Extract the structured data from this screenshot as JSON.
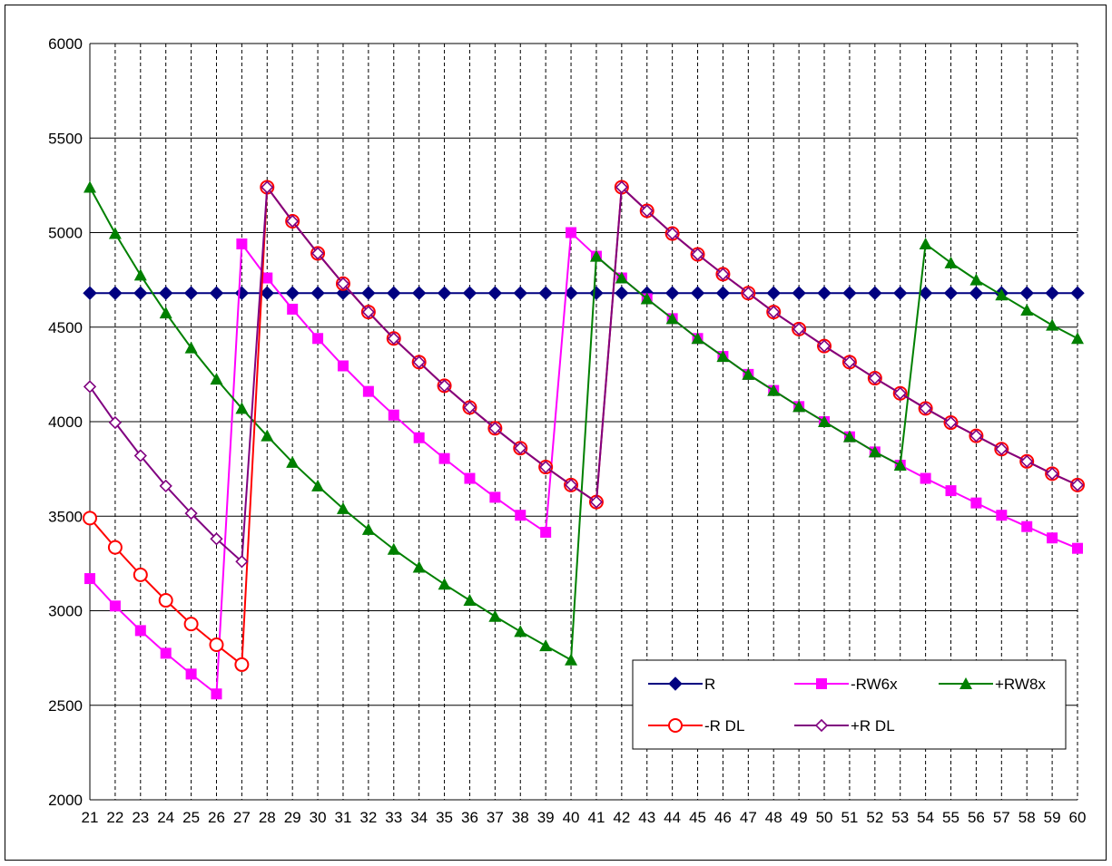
{
  "chart_data": {
    "type": "line",
    "title": "",
    "xlabel": "",
    "ylabel": "",
    "x": [
      21,
      22,
      23,
      24,
      25,
      26,
      27,
      28,
      29,
      30,
      31,
      32,
      33,
      34,
      35,
      36,
      37,
      38,
      39,
      40,
      41,
      42,
      43,
      44,
      45,
      46,
      47,
      48,
      49,
      50,
      51,
      52,
      53,
      54,
      55,
      56,
      57,
      58,
      59,
      60
    ],
    "ylim": [
      2000,
      6000
    ],
    "yticks": [
      2000,
      2500,
      3000,
      3500,
      4000,
      4500,
      5000,
      5500,
      6000
    ],
    "grid": "horizontal solid, vertical dashed",
    "legend_position": "lower-right inside plot",
    "series": [
      {
        "name": "R",
        "color": "#000080",
        "marker": "diamond-filled",
        "values": [
          4680,
          4680,
          4680,
          4680,
          4680,
          4680,
          4680,
          4680,
          4680,
          4680,
          4680,
          4680,
          4680,
          4680,
          4680,
          4680,
          4680,
          4680,
          4680,
          4680,
          4680,
          4680,
          4680,
          4680,
          4680,
          4680,
          4680,
          4680,
          4680,
          4680,
          4680,
          4680,
          4680,
          4680,
          4680,
          4680,
          4680,
          4680,
          4680,
          4680
        ]
      },
      {
        "name": "-RW6x",
        "color": "#FF00FF",
        "marker": "square-filled",
        "values": [
          3170,
          3025,
          2895,
          2775,
          2665,
          2560,
          4940,
          4760,
          4595,
          4440,
          4295,
          4160,
          4035,
          3915,
          3805,
          3700,
          3600,
          3505,
          3415,
          5000,
          4875,
          4760,
          4650,
          4545,
          4440,
          4345,
          4250,
          4165,
          4080,
          4000,
          3920,
          3840,
          3770,
          3700,
          3635,
          3570,
          3505,
          3445,
          3385,
          3330
        ]
      },
      {
        "name": "+RW8x",
        "color": "#008000",
        "marker": "triangle-filled",
        "values": [
          5240,
          4995,
          4775,
          4575,
          4390,
          4225,
          4070,
          3925,
          3785,
          3660,
          3540,
          3430,
          3325,
          3230,
          3140,
          3055,
          2970,
          2890,
          2815,
          2740,
          4875,
          4760,
          4650,
          4545,
          4440,
          4345,
          4250,
          4165,
          4080,
          4000,
          3920,
          3840,
          3770,
          4940,
          4840,
          4750,
          4670,
          4590,
          4510,
          4440
        ]
      },
      {
        "name": "-R DL",
        "color": "#FF0000",
        "marker": "circle-open",
        "values": [
          3490,
          3335,
          3190,
          3055,
          2930,
          2820,
          2715,
          5240,
          5060,
          4890,
          4730,
          4580,
          4440,
          4315,
          4190,
          4075,
          3965,
          3860,
          3760,
          3665,
          3575,
          5240,
          5115,
          4995,
          4885,
          4780,
          4680,
          4580,
          4490,
          4400,
          4315,
          4230,
          4150,
          4070,
          3995,
          3925,
          3855,
          3790,
          3725,
          3665
        ]
      },
      {
        "name": "+R DL",
        "color": "#800080",
        "marker": "diamond-open",
        "values": [
          4185,
          3995,
          3820,
          3660,
          3515,
          3380,
          3260,
          5240,
          5060,
          4890,
          4730,
          4580,
          4440,
          4315,
          4190,
          4075,
          3965,
          3860,
          3760,
          3665,
          3575,
          5240,
          5115,
          4995,
          4885,
          4780,
          4680,
          4580,
          4490,
          4400,
          4315,
          4230,
          4150,
          4070,
          3995,
          3925,
          3855,
          3790,
          3725,
          3665
        ]
      }
    ]
  }
}
